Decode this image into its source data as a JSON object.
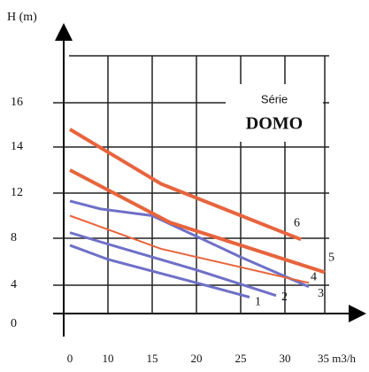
{
  "chart_data": {
    "type": "line",
    "y_label": "H (m)",
    "box_title": "Série",
    "box_name": "DOMO",
    "xlim": [
      0,
      35
    ],
    "ylim": [
      0,
      16
    ],
    "xticks": [
      0,
      10,
      15,
      20,
      25,
      30,
      {
        "value": 35,
        "label": "35 m3/h"
      }
    ],
    "yticks": [
      0,
      4,
      8,
      12,
      14,
      16
    ],
    "grid": true,
    "series": [
      {
        "name": "1",
        "color": "#6f70c8",
        "width": 3,
        "x": [
          0,
          10,
          20,
          26
        ],
        "values": [
          7.4,
          6.2,
          4.2,
          2.5
        ]
      },
      {
        "name": "2",
        "color": "#6f70c8",
        "width": 3,
        "x": [
          0,
          10,
          20,
          29
        ],
        "values": [
          8.5,
          7.5,
          5.3,
          2.7
        ]
      },
      {
        "name": "3",
        "color": "#6f70c8",
        "width": 3,
        "x": [
          0,
          8,
          15,
          25,
          33
        ],
        "values": [
          11.3,
          10.6,
          10.0,
          6.4,
          3.8
        ]
      },
      {
        "name": "4",
        "color": "#e8643c",
        "width": 2,
        "x": [
          0,
          16,
          33
        ],
        "values": [
          10.0,
          7.1,
          4.2
        ]
      },
      {
        "name": "5",
        "color": "#e8643c",
        "width": 4,
        "x": [
          0,
          17,
          35
        ],
        "values": [
          13.0,
          9.4,
          5.1
        ]
      },
      {
        "name": "6",
        "color": "#e8643c",
        "width": 4,
        "x": [
          0,
          16,
          32
        ],
        "values": [
          14.8,
          12.4,
          7.9
        ]
      }
    ]
  }
}
